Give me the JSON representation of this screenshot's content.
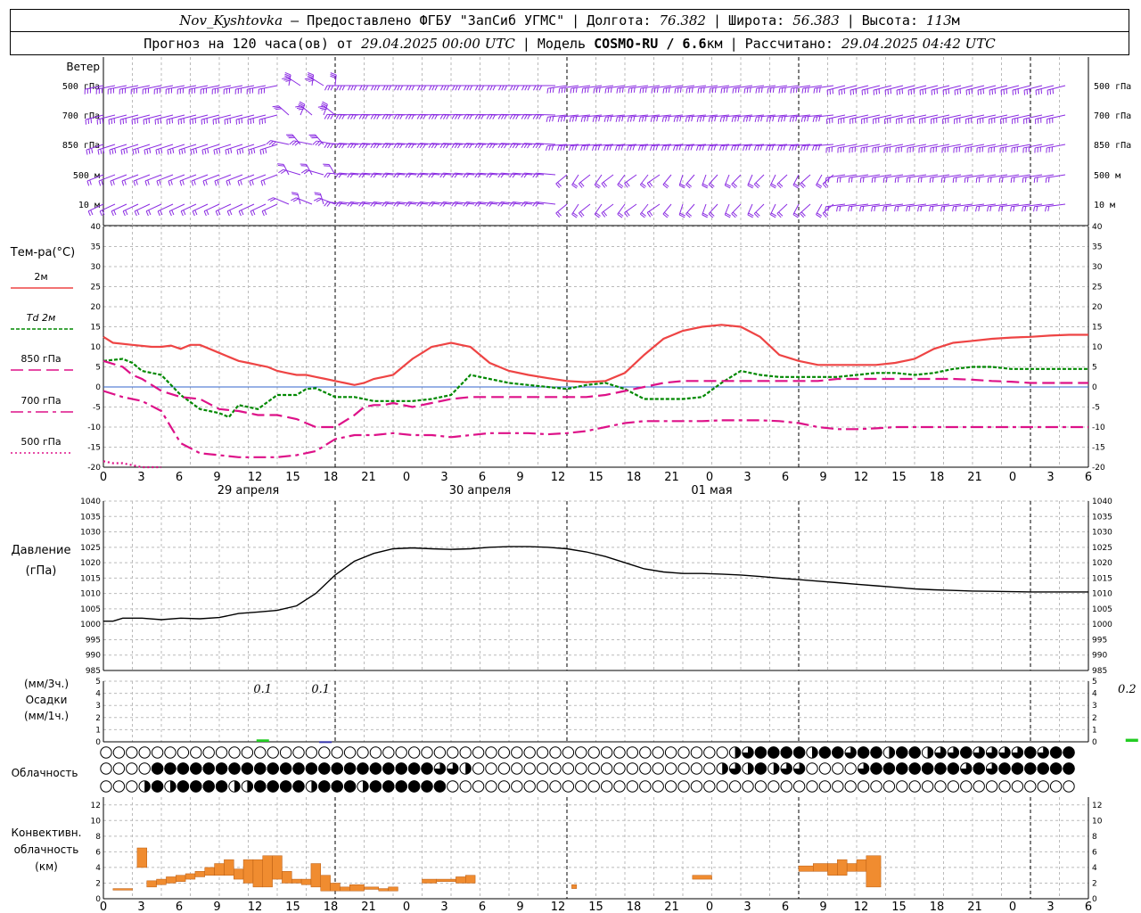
{
  "header": {
    "station": "Nov_Kyshtovka",
    "provider": "– Предоставлено ФГБУ \"ЗапСиб УГМС\"",
    "lon_label": "Долгота:",
    "lon": "76.382",
    "lat_label": "Широта:",
    "lat": "56.383",
    "alt_label": "Высота:",
    "alt": "113",
    "alt_unit": "м",
    "forecast_label": "Прогноз на 120 часа(ов) от",
    "forecast_time": "29.04.2025 00:00 UTC",
    "model_label": "Модель",
    "model": "COSMO-RU / 6.6",
    "model_unit": "км",
    "calc_label": "Рассчитано:",
    "calc_time": "29.04.2025 04:42 UTC"
  },
  "chart_data": [
    {
      "type": "wind-barbs",
      "title": "Ветер",
      "levels": [
        "500 гПа",
        "700 гПа",
        "850 гПа",
        "500 м",
        "10  м"
      ]
    },
    {
      "type": "line",
      "ylabel": "Тем-ра(°C)",
      "ylim": [
        -20,
        40
      ],
      "yticks": [
        -20,
        -15,
        -10,
        -5,
        0,
        5,
        10,
        15,
        20,
        25,
        30,
        35,
        40
      ],
      "x_hours_step": 3,
      "x_tick_labels": [
        "0",
        "3",
        "6",
        "9",
        "12",
        "15",
        "18",
        "21",
        "0",
        "3",
        "6",
        "9",
        "12",
        "15",
        "18",
        "21",
        "0",
        "3",
        "6",
        "9",
        "12",
        "15",
        "18",
        "21",
        "0",
        "3",
        "6"
      ],
      "day_labels": [
        {
          "h": 15,
          "text": "29 апреля"
        },
        {
          "h": 39,
          "text": "30 апреля"
        },
        {
          "h": 63,
          "text": "01 мая"
        }
      ],
      "series": [
        {
          "name": "2м",
          "color": "#ee4444",
          "style": "solid",
          "x": [
            0,
            1,
            3,
            5,
            6,
            7,
            8,
            9,
            10,
            11,
            12,
            13,
            14,
            15,
            16,
            17,
            18,
            19,
            20,
            21,
            22,
            23,
            24,
            25,
            26,
            27,
            28,
            29,
            30,
            31,
            32,
            33,
            34,
            35,
            36,
            37,
            38,
            39,
            40,
            42,
            44,
            46,
            48,
            50,
            52,
            54,
            56,
            58,
            59,
            60,
            62,
            64,
            66,
            68,
            70,
            72,
            74,
            76,
            78,
            80,
            82,
            84,
            86,
            88,
            90,
            92,
            94,
            96,
            98,
            100,
            102
          ],
          "y": [
            12.5,
            11,
            10.5,
            10,
            10,
            10.3,
            9.5,
            10.5,
            10.5,
            9.5,
            8.5,
            7.5,
            6.5,
            6,
            5.5,
            5,
            4,
            3.5,
            3,
            3,
            2.5,
            2,
            1.5,
            1,
            0.5,
            1,
            2,
            2.5,
            3,
            5,
            7,
            8.5,
            10,
            10.5,
            11,
            10.5,
            10,
            8,
            6,
            4,
            3,
            2.2,
            1.5,
            1.2,
            1.5,
            3.5,
            8,
            12,
            13,
            14,
            15,
            15.5,
            15,
            12.5,
            8,
            6.5,
            5.5,
            5.5,
            5.5,
            5.5,
            6,
            7,
            9.5,
            11,
            11.5,
            12,
            12.3,
            12.5,
            12.8,
            13,
            13
          ]
        },
        {
          "name": "Td  2м",
          "color": "#008800",
          "style": "dash",
          "x": [
            0,
            2,
            3,
            4,
            6,
            8,
            10,
            12,
            13,
            14,
            15,
            16,
            18,
            19,
            20,
            21,
            22,
            24,
            26,
            28,
            30,
            32,
            34,
            36,
            38,
            40,
            42,
            44,
            46,
            48,
            50,
            52,
            54,
            56,
            58,
            60,
            62,
            64,
            66,
            68,
            70,
            72,
            74,
            76,
            78,
            80,
            82,
            84,
            86,
            88,
            90,
            92,
            94,
            96,
            98,
            100,
            102
          ],
          "y": [
            6.5,
            7,
            6,
            4,
            3,
            -2,
            -5.5,
            -6.5,
            -7.5,
            -4.5,
            -5,
            -5.5,
            -2,
            -2,
            -2,
            -0.5,
            -0.3,
            -2.5,
            -2.5,
            -3.5,
            -3.5,
            -3.5,
            -3,
            -2,
            3,
            2,
            1,
            0.5,
            0,
            -0.5,
            0.5,
            1,
            -0.5,
            -3,
            -3,
            -3,
            -2.5,
            1,
            4,
            3,
            2.5,
            2.5,
            2.5,
            2.5,
            3,
            3.5,
            3.5,
            3,
            3.5,
            4.5,
            5,
            5,
            4.5,
            4.5,
            4.5,
            4.5,
            4.5
          ]
        },
        {
          "name": "850 гПа",
          "color": "#dd1188",
          "style": "longdash",
          "x": [
            0,
            2,
            3,
            4,
            6,
            8,
            10,
            12,
            14,
            16,
            18,
            20,
            22,
            24,
            25,
            26,
            27,
            28,
            29,
            30,
            32,
            34,
            36,
            38,
            40,
            42,
            44,
            46,
            48,
            50,
            52,
            54,
            56,
            58,
            60,
            62,
            64,
            66,
            68,
            70,
            72,
            74,
            76,
            78,
            80,
            82,
            84,
            86,
            88,
            90,
            92,
            94,
            96,
            98,
            100,
            102
          ],
          "y": [
            6.5,
            5,
            3,
            2,
            -1,
            -2.5,
            -3,
            -5.5,
            -6,
            -7,
            -7,
            -8,
            -10,
            -10,
            -8.5,
            -7,
            -5,
            -4.5,
            -4.5,
            -4,
            -5,
            -4,
            -3,
            -2.5,
            -2.5,
            -2.5,
            -2.5,
            -2.5,
            -2.5,
            -2.5,
            -2,
            -1,
            0,
            1,
            1.5,
            1.5,
            1.5,
            1.5,
            1.5,
            1.5,
            1.5,
            1.5,
            2,
            2,
            2,
            2,
            2,
            2,
            2,
            1.8,
            1.5,
            1.3,
            1,
            1,
            1,
            1
          ]
        },
        {
          "name": "700 гПа",
          "color": "#dd1188",
          "style": "dashdot",
          "x": [
            0,
            2,
            4,
            6,
            8,
            10,
            12,
            14,
            16,
            18,
            20,
            22,
            24,
            26,
            28,
            30,
            32,
            34,
            36,
            38,
            40,
            42,
            44,
            46,
            48,
            50,
            52,
            54,
            56,
            58,
            60,
            62,
            64,
            66,
            68,
            70,
            72,
            74,
            76,
            78,
            80,
            82,
            84,
            86,
            88,
            90,
            92,
            94,
            96,
            98,
            100,
            102
          ],
          "y": [
            -1,
            -2.5,
            -3.5,
            -6,
            -14,
            -16.5,
            -17,
            -17.5,
            -17.5,
            -17.5,
            -17,
            -16,
            -13,
            -12,
            -12,
            -11.5,
            -12,
            -12,
            -12.5,
            -12,
            -11.5,
            -11.5,
            -11.5,
            -11.8,
            -11.5,
            -11,
            -10,
            -9,
            -8.5,
            -8.5,
            -8.5,
            -8.5,
            -8.3,
            -8.3,
            -8.3,
            -8.5,
            -9,
            -10,
            -10.5,
            -10.5,
            -10.3,
            -10,
            -10,
            -10,
            -10,
            -10,
            -10,
            -10,
            -10,
            -10,
            -10,
            -10
          ]
        },
        {
          "name": "500 гПа",
          "color": "#dd1188",
          "style": "dot",
          "x": [
            0,
            1,
            2,
            3,
            4,
            5,
            6
          ],
          "y": [
            -18.5,
            -19,
            -19,
            -19.5,
            -20,
            -20.5,
            -21
          ]
        }
      ]
    },
    {
      "type": "line",
      "ylabel": "Давление",
      "ylabel2": "(гПа)",
      "ylim": [
        985,
        1040
      ],
      "yticks": [
        985,
        990,
        995,
        1000,
        1005,
        1010,
        1015,
        1020,
        1025,
        1030,
        1035,
        1040
      ],
      "series": [
        {
          "name": "Давление",
          "color": "#000000",
          "x": [
            0,
            1,
            2,
            4,
            6,
            8,
            10,
            12,
            14,
            16,
            18,
            20,
            22,
            24,
            26,
            28,
            30,
            32,
            34,
            36,
            38,
            40,
            42,
            44,
            46,
            48,
            50,
            52,
            54,
            56,
            58,
            60,
            62,
            64,
            66,
            68,
            70,
            72,
            74,
            76,
            78,
            80,
            82,
            84,
            86,
            88,
            90,
            92,
            94,
            96,
            98,
            100,
            102
          ],
          "y": [
            1001,
            1001,
            1002,
            1002,
            1001.5,
            1002,
            1001.8,
            1002.2,
            1003.5,
            1004,
            1004.5,
            1006,
            1010,
            1016,
            1020.5,
            1023,
            1024.5,
            1024.8,
            1024.5,
            1024.3,
            1024.5,
            1025,
            1025.2,
            1025.2,
            1025,
            1024.5,
            1023.5,
            1022,
            1020,
            1018,
            1017,
            1016.5,
            1016.5,
            1016.3,
            1016,
            1015.5,
            1015,
            1014.5,
            1014,
            1013.5,
            1013,
            1012.5,
            1012,
            1011.5,
            1011.2,
            1011,
            1010.8,
            1010.7,
            1010.6,
            1010.5,
            1010.5,
            1010.5,
            1010.5
          ]
        }
      ]
    },
    {
      "type": "bar",
      "ylabel": "(мм/3ч.)",
      "ylabel2": "Осадки",
      "ylabel3": "(мм/1ч.)",
      "ylim": [
        0,
        5
      ],
      "yticks": [
        0,
        1,
        2,
        3,
        4,
        5
      ],
      "amount_labels": [
        {
          "h": 16.5,
          "text": "0.1"
        },
        {
          "h": 22.5,
          "text": "0.1"
        },
        {
          "h": 106,
          "text": "0.2"
        }
      ],
      "bars": [
        {
          "h": 16.5,
          "value": 0.2,
          "color": "#22cc22"
        },
        {
          "h": 23,
          "value": 0.05,
          "color": "#3333aa"
        },
        {
          "h": 106.5,
          "value": 0.25,
          "color": "#22cc22"
        }
      ]
    },
    {
      "type": "table",
      "title": "Облачность",
      "rows": [
        "0000000000000000000000000000000000000000000000000234444244344244233433334344",
        "0000444444444444444444444433200000000000000000002324233000034444444343444444",
        "0002424444224444244424444440000000000000000000000000000000000000000000000000"
      ]
    },
    {
      "type": "bar",
      "ylabel": "Конвективн.",
      "ylabel2": "облачность",
      "ylabel3": "(км)",
      "ylim": [
        0,
        13
      ],
      "yticks": [
        0,
        2,
        4,
        6,
        8,
        10,
        12
      ],
      "x_tick_labels": [
        "0",
        "3",
        "6",
        "9",
        "12",
        "15",
        "18",
        "21",
        "0",
        "3",
        "6",
        "9",
        "12",
        "15",
        "18",
        "21",
        "0",
        "3",
        "6",
        "9",
        "12",
        "15",
        "18",
        "21",
        "0",
        "3",
        "6"
      ],
      "color": "#f08c30",
      "cells": [
        [
          1,
          3,
          1.1,
          1.3
        ],
        [
          3.5,
          4.5,
          4,
          6.5
        ],
        [
          4.5,
          5.5,
          1.5,
          2.3
        ],
        [
          5.5,
          6.5,
          1.8,
          2.5
        ],
        [
          6.5,
          7.5,
          2,
          2.8
        ],
        [
          7.5,
          8.5,
          2.2,
          3
        ],
        [
          8.5,
          9.5,
          2.5,
          3.2
        ],
        [
          9.5,
          10.5,
          2.8,
          3.5
        ],
        [
          10.5,
          11.5,
          3,
          4
        ],
        [
          11.5,
          12.5,
          3,
          4.5
        ],
        [
          12.5,
          13.5,
          3,
          5
        ],
        [
          13.5,
          14.5,
          2.5,
          3.8
        ],
        [
          14.5,
          15.5,
          2,
          5
        ],
        [
          15.5,
          16.5,
          1.5,
          5
        ],
        [
          16.5,
          17.5,
          1.5,
          5.5
        ],
        [
          17.5,
          18.5,
          2.5,
          5.5
        ],
        [
          18.5,
          19.5,
          2,
          3.5
        ],
        [
          19.5,
          20.5,
          2,
          2.5
        ],
        [
          20.5,
          21.5,
          1.8,
          2.5
        ],
        [
          21.5,
          22.5,
          1.5,
          4.5
        ],
        [
          22.5,
          23.5,
          1,
          3
        ],
        [
          23.5,
          24.5,
          1,
          2
        ],
        [
          24.5,
          25.5,
          1,
          1.5
        ],
        [
          25.5,
          27,
          1,
          1.8
        ],
        [
          27,
          28.5,
          1.2,
          1.5
        ],
        [
          28.5,
          29.5,
          1,
          1.3
        ],
        [
          29.5,
          30.5,
          1,
          1.5
        ],
        [
          33,
          34.5,
          2,
          2.5
        ],
        [
          34.5,
          36.5,
          2.2,
          2.5
        ],
        [
          36.5,
          37.5,
          2,
          2.8
        ],
        [
          37.5,
          38.5,
          2,
          3
        ],
        [
          48.5,
          49,
          1.3,
          1.8
        ],
        [
          61,
          63,
          2.5,
          3
        ],
        [
          72,
          73.5,
          3.5,
          4.2
        ],
        [
          73.5,
          75,
          3.5,
          4.5
        ],
        [
          75,
          76,
          3,
          4.5
        ],
        [
          76,
          77,
          3,
          5
        ],
        [
          77,
          78,
          3.5,
          4.5
        ],
        [
          78,
          79,
          3.5,
          5
        ],
        [
          79,
          80.5,
          1.5,
          5.5
        ]
      ]
    }
  ]
}
